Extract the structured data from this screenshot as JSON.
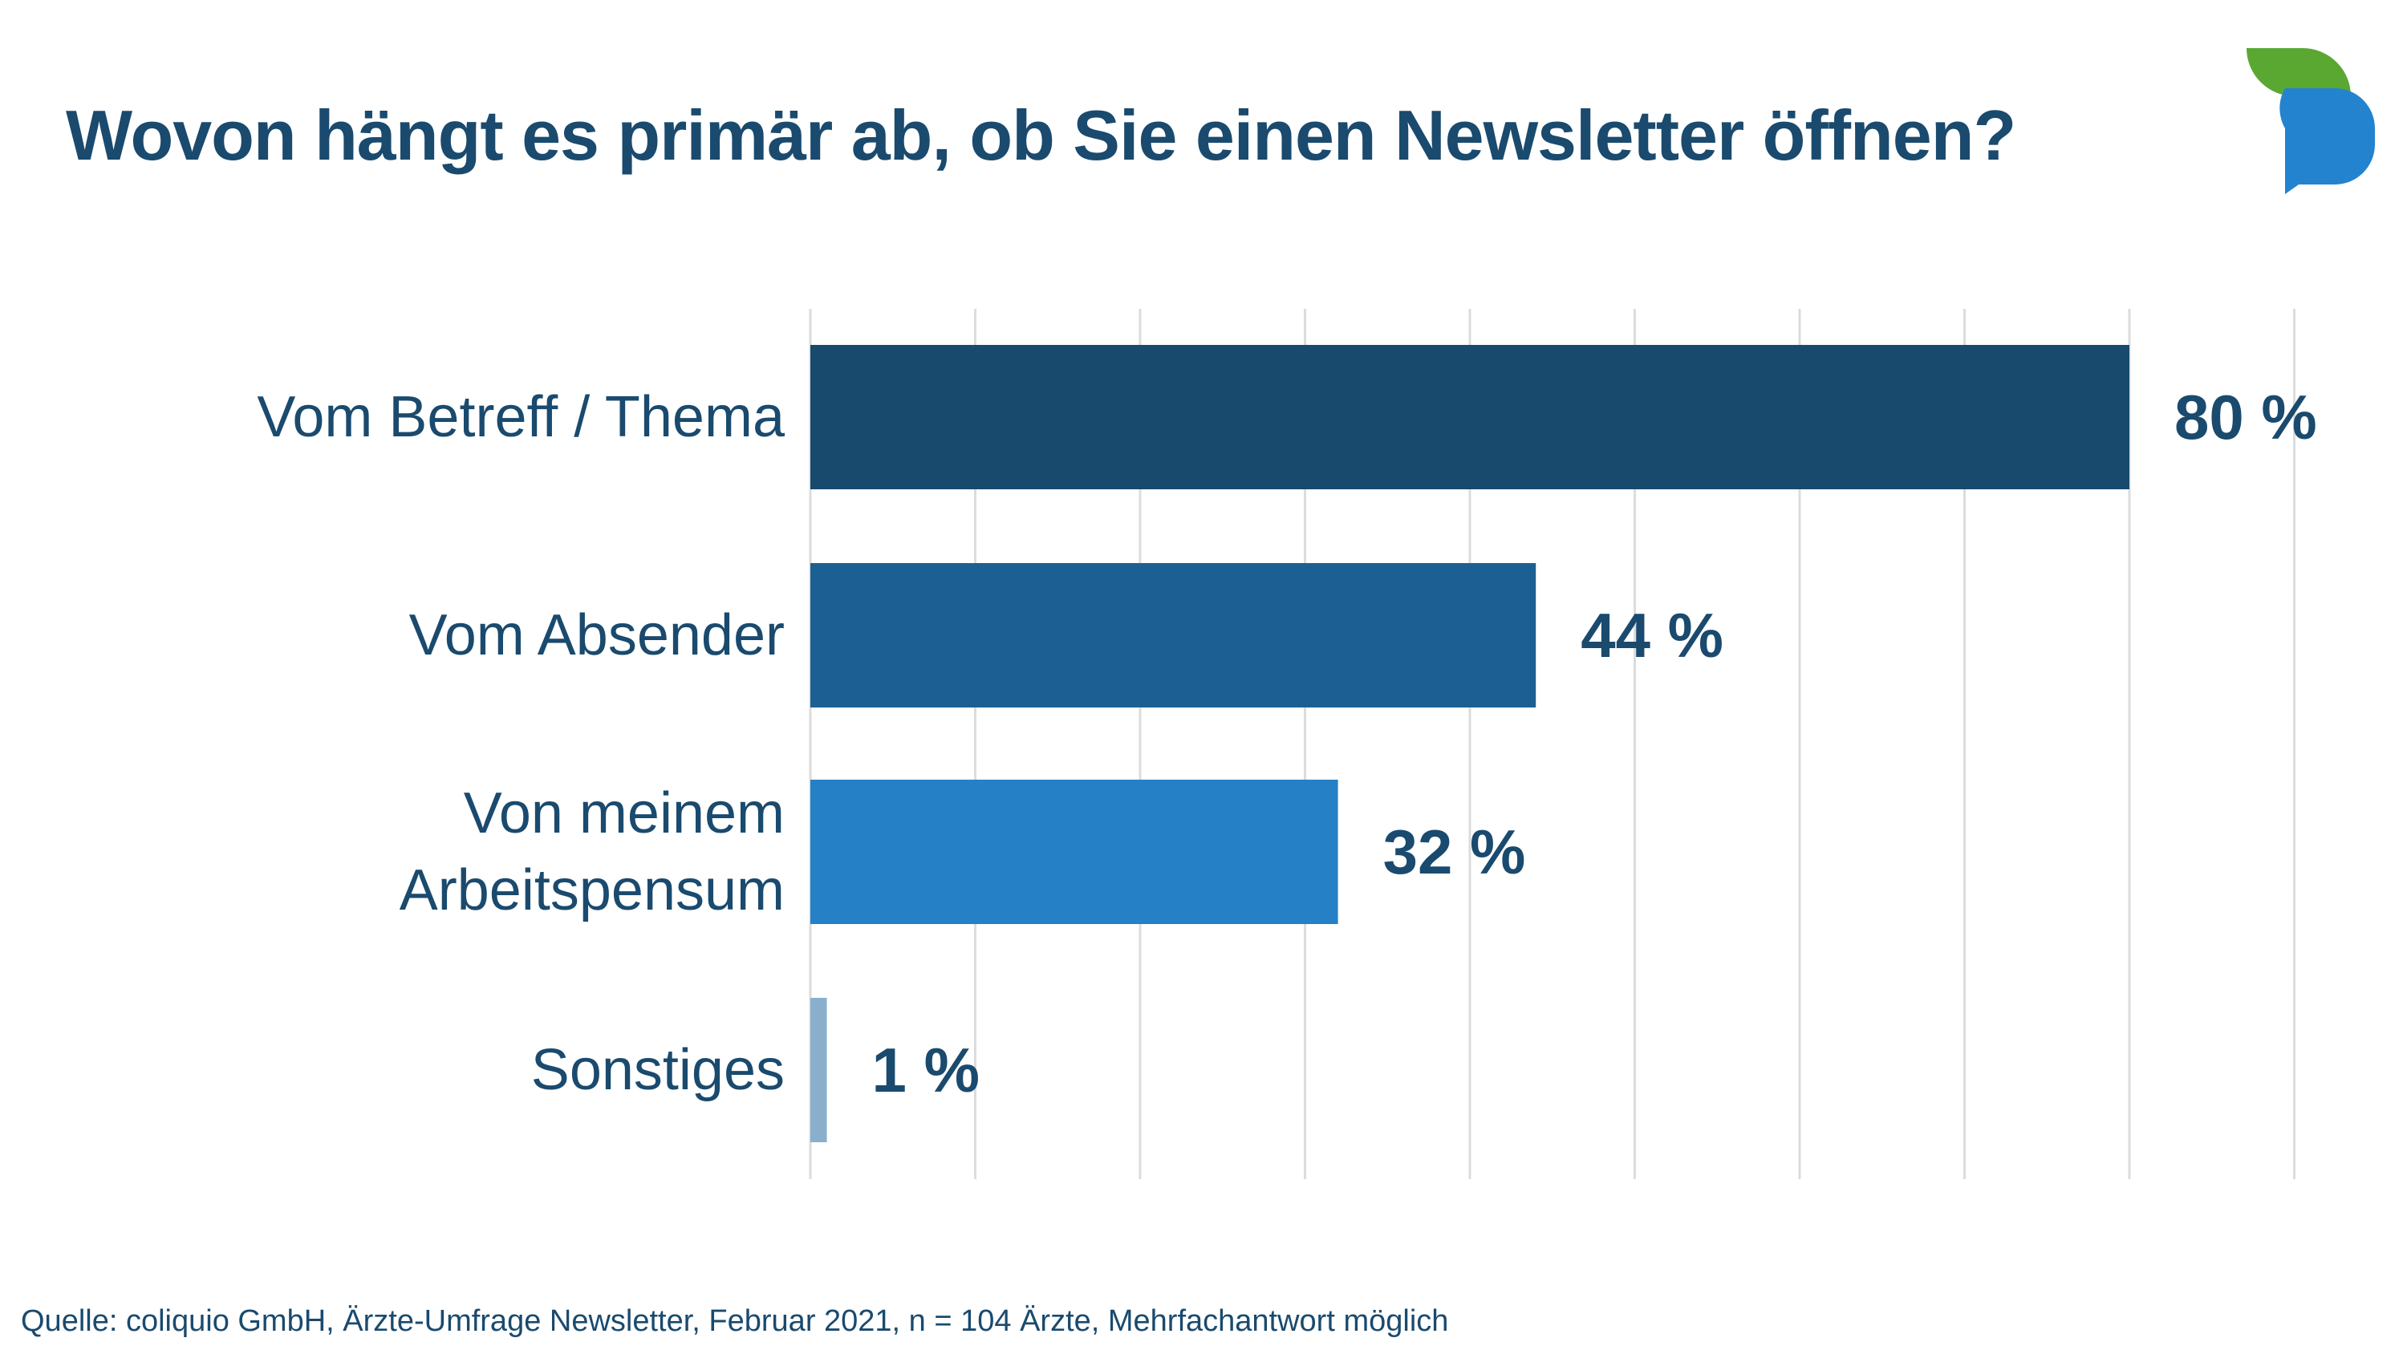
{
  "title": "Wovon hängt es primär ab, ob Sie einen Newsletter öffnen?",
  "footer": "Quelle: coliquio GmbH, Ärzte-Umfrage Newsletter, Februar 2021, n = 104 Ärzte, Mehrfachantwort möglich",
  "logo": {
    "icon": "speech-bubbles-icon",
    "colors": [
      "#5aa832",
      "#2383cf"
    ]
  },
  "colors": {
    "text": "#1a4a6e",
    "grid": "#dcdcdc"
  },
  "chart_data": {
    "type": "bar",
    "orientation": "horizontal",
    "title": "",
    "xlabel": "",
    "ylabel": "",
    "xlim": [
      0,
      90
    ],
    "grid": true,
    "categories": [
      [
        "Vom Betreff / Thema"
      ],
      [
        "Vom Absender"
      ],
      [
        "Von meinem",
        "Arbeitspensum"
      ],
      [
        "Sonstiges"
      ]
    ],
    "values": [
      80,
      44,
      32,
      1
    ],
    "value_labels": [
      "80 %",
      "44 %",
      "32 %",
      "1 %"
    ],
    "bar_colors": [
      "#184a6e",
      "#1c5f92",
      "#2580c6",
      "#8aafcd"
    ]
  }
}
